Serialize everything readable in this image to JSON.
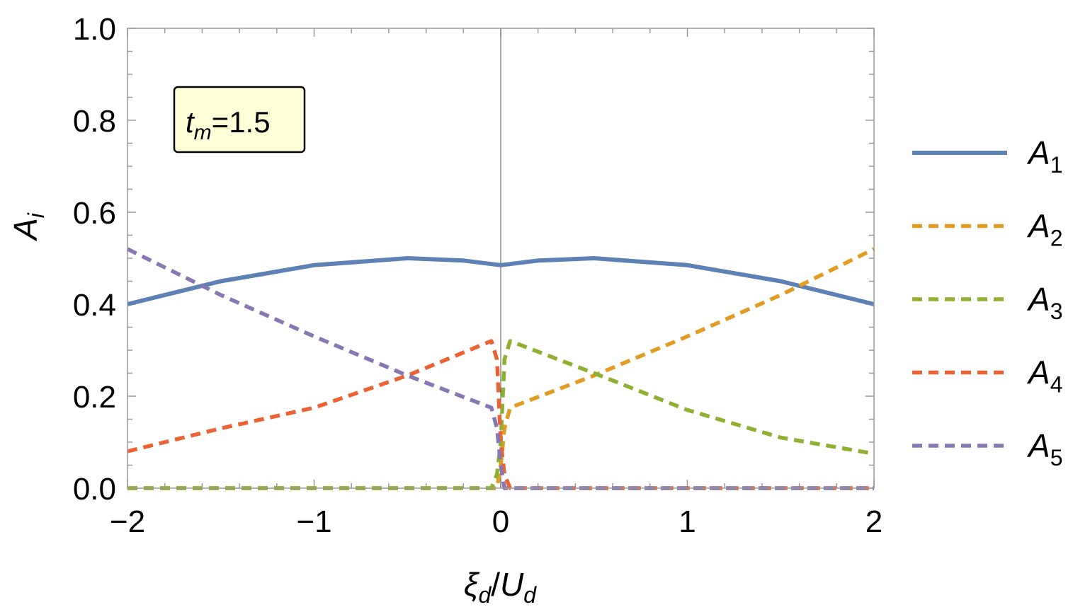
{
  "chart_data": {
    "type": "line",
    "xlabel": "ξd/Ud",
    "xlabel_main": "ξ",
    "xlabel_sub": "d",
    "xlabel_den": "U",
    "xlabel_den_sub": "d",
    "ylabel": "Ai",
    "ylabel_main": "A",
    "ylabel_sub": "i",
    "xlim": [
      -2,
      2
    ],
    "ylim": [
      0,
      1
    ],
    "x_ticks": [
      -2,
      -1,
      0,
      1,
      2
    ],
    "x_tick_labels": [
      "−2",
      "−1",
      "0",
      "1",
      "2"
    ],
    "y_ticks": [
      0,
      0.2,
      0.4,
      0.6,
      0.8,
      1.0
    ],
    "y_tick_labels": [
      "0.0",
      "0.2",
      "0.4",
      "0.6",
      "0.8",
      "1.0"
    ],
    "grid": false,
    "vertical_reference_line_x": 0,
    "legend_position": "right",
    "annotation": {
      "main": "t",
      "sub": "m",
      "rest": "=1.5",
      "position": "top-left",
      "background": "#ffffd8"
    },
    "series": [
      {
        "name": "A1",
        "label_main": "A",
        "label_sub": "1",
        "color": "#5e81b5",
        "style": "solid",
        "x": [
          -2,
          -1.5,
          -1,
          -0.5,
          -0.2,
          0,
          0.2,
          0.5,
          1,
          1.5,
          2
        ],
        "y": [
          0.4,
          0.45,
          0.485,
          0.5,
          0.495,
          0.485,
          0.495,
          0.5,
          0.485,
          0.45,
          0.4
        ]
      },
      {
        "name": "A2",
        "label_main": "A",
        "label_sub": "2",
        "color": "#e19c24",
        "style": "dashed",
        "x": [
          -2,
          -0.05,
          -0.02,
          0,
          0.02,
          0.05,
          0.5,
          1,
          1.5,
          2
        ],
        "y": [
          0.0,
          0.0,
          0.0,
          0.05,
          0.13,
          0.175,
          0.245,
          0.33,
          0.42,
          0.52
        ]
      },
      {
        "name": "A3",
        "label_main": "A",
        "label_sub": "3",
        "color": "#8fb032",
        "style": "dashed",
        "x": [
          -2,
          -0.05,
          -0.02,
          0,
          0.02,
          0.05,
          0.5,
          1,
          1.5,
          2
        ],
        "y": [
          0.0,
          0.0,
          0.03,
          0.1,
          0.28,
          0.32,
          0.25,
          0.17,
          0.11,
          0.075
        ]
      },
      {
        "name": "A4",
        "label_main": "A",
        "label_sub": "4",
        "color": "#eb6235",
        "style": "dashed",
        "x": [
          -2,
          -1.5,
          -1,
          -0.5,
          -0.05,
          -0.02,
          0,
          0.02,
          0.05,
          2
        ],
        "y": [
          0.08,
          0.13,
          0.175,
          0.245,
          0.32,
          0.28,
          0.1,
          0.03,
          0.0,
          0.0
        ]
      },
      {
        "name": "A5",
        "label_main": "A",
        "label_sub": "5",
        "color": "#8778b3",
        "style": "dashed",
        "x": [
          -2,
          -1.5,
          -1,
          -0.5,
          -0.05,
          -0.02,
          0,
          0.02,
          0.05,
          2
        ],
        "y": [
          0.52,
          0.42,
          0.33,
          0.245,
          0.175,
          0.13,
          0.05,
          0.0,
          0.0,
          0.0
        ]
      }
    ]
  }
}
